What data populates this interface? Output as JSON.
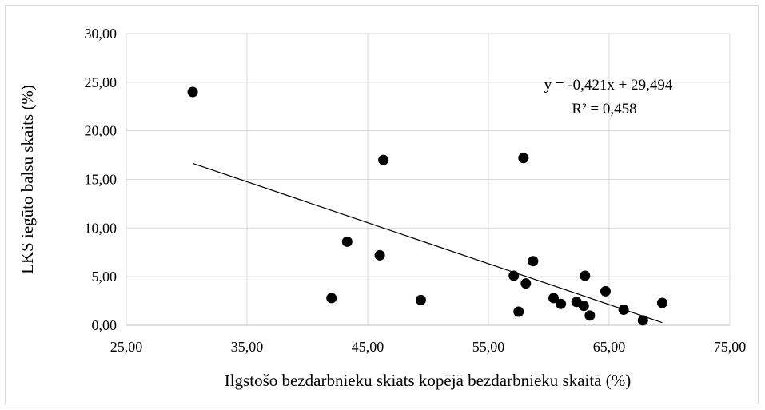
{
  "chart_data": {
    "type": "scatter",
    "title": "",
    "xlabel": "Ilgstošo bezdarbnieku skiats kopējā bezdarbnieku skaitā (%)",
    "ylabel": "LKS iegūto balsu skaits (%)",
    "xlim": [
      25,
      75
    ],
    "ylim": [
      0,
      30
    ],
    "x_ticks": [
      "25,00",
      "35,00",
      "45,00",
      "55,00",
      "65,00",
      "75,00"
    ],
    "y_ticks": [
      "0,00",
      "5,00",
      "10,00",
      "15,00",
      "20,00",
      "25,00",
      "30,00"
    ],
    "grid": true,
    "legend": "none",
    "points": [
      {
        "x": 30.5,
        "y": 24.0
      },
      {
        "x": 42.0,
        "y": 2.8
      },
      {
        "x": 43.3,
        "y": 8.6
      },
      {
        "x": 46.0,
        "y": 7.2
      },
      {
        "x": 46.3,
        "y": 17.0
      },
      {
        "x": 49.4,
        "y": 2.6
      },
      {
        "x": 57.1,
        "y": 5.1
      },
      {
        "x": 57.5,
        "y": 1.4
      },
      {
        "x": 57.9,
        "y": 17.2
      },
      {
        "x": 58.1,
        "y": 4.3
      },
      {
        "x": 58.7,
        "y": 6.6
      },
      {
        "x": 60.4,
        "y": 2.8
      },
      {
        "x": 61.0,
        "y": 2.2
      },
      {
        "x": 62.3,
        "y": 2.4
      },
      {
        "x": 62.9,
        "y": 2.0
      },
      {
        "x": 63.0,
        "y": 5.1
      },
      {
        "x": 63.4,
        "y": 1.0
      },
      {
        "x": 64.7,
        "y": 3.5
      },
      {
        "x": 66.2,
        "y": 1.6
      },
      {
        "x": 67.8,
        "y": 0.5
      },
      {
        "x": 69.4,
        "y": 2.3
      }
    ],
    "trendline": {
      "slope": -0.421,
      "intercept": 29.494,
      "x_start": 30.5,
      "x_end": 69.4,
      "equation": "y = -0,421x + 29,494",
      "r_squared": "R² = 0,458"
    },
    "colors": {
      "points": "#000000",
      "trendline": "#000000",
      "grid": "#d9d9d9",
      "axis": "#bfbfbf"
    }
  }
}
